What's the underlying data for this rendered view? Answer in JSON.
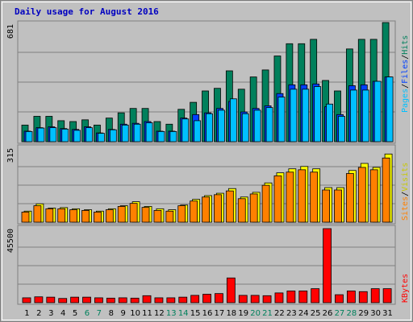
{
  "chart_data": [
    {
      "type": "bar",
      "title": "Daily usage for August 2016",
      "panel": "hits-files-pages",
      "y_max_label": "681",
      "ylim": [
        0,
        681
      ],
      "grid": true,
      "side_label_parts": [
        "Pages",
        "/",
        "Files",
        "/",
        "Hits"
      ],
      "categories": [
        "1",
        "2",
        "3",
        "4",
        "5",
        "6",
        "7",
        "8",
        "9",
        "10",
        "11",
        "12",
        "13",
        "14",
        "15",
        "16",
        "17",
        "18",
        "19",
        "20",
        "21",
        "22",
        "23",
        "24",
        "25",
        "26",
        "27",
        "28",
        "29",
        "30",
        "31"
      ],
      "weekend_days": [
        "6",
        "7",
        "13",
        "14",
        "20",
        "21",
        "27",
        "28"
      ],
      "series": [
        {
          "name": "Hits",
          "values": [
            95,
            145,
            145,
            120,
            115,
            125,
            95,
            135,
            165,
            190,
            190,
            115,
            100,
            185,
            225,
            290,
            305,
            405,
            300,
            370,
            410,
            490,
            560,
            560,
            585,
            350,
            290,
            530,
            585,
            585,
            681
          ]
        },
        {
          "name": "Files",
          "values": [
            60,
            80,
            85,
            75,
            70,
            85,
            50,
            70,
            100,
            105,
            115,
            60,
            60,
            135,
            155,
            165,
            190,
            230,
            170,
            190,
            205,
            275,
            325,
            325,
            330,
            200,
            155,
            320,
            325,
            345,
            370
          ]
        },
        {
          "name": "Pages",
          "values": [
            58,
            78,
            80,
            72,
            65,
            80,
            48,
            68,
            95,
            100,
            108,
            58,
            58,
            130,
            120,
            160,
            180,
            245,
            160,
            180,
            195,
            255,
            300,
            300,
            315,
            215,
            145,
            295,
            295,
            345,
            370
          ]
        }
      ],
      "colors": {
        "Hits": "#00805c",
        "Files": "#0040ff",
        "Pages": "#00c0ff"
      }
    },
    {
      "type": "bar",
      "panel": "visits-sites",
      "y_max_label": "315",
      "ylim": [
        0,
        315
      ],
      "grid": true,
      "side_label_parts": [
        "Sites",
        "/",
        "Visits"
      ],
      "categories": [
        "1",
        "2",
        "3",
        "4",
        "5",
        "6",
        "7",
        "8",
        "9",
        "10",
        "11",
        "12",
        "13",
        "14",
        "15",
        "16",
        "17",
        "18",
        "19",
        "20",
        "21",
        "22",
        "23",
        "24",
        "25",
        "26",
        "27",
        "28",
        "29",
        "30",
        "31"
      ],
      "series": [
        {
          "name": "Visits",
          "values": [
            47,
            78,
            60,
            62,
            57,
            53,
            47,
            57,
            70,
            87,
            67,
            57,
            53,
            73,
            97,
            113,
            123,
            143,
            107,
            127,
            167,
            210,
            227,
            237,
            227,
            147,
            147,
            220,
            250,
            233,
            290
          ]
        },
        {
          "name": "Sites",
          "values": [
            43,
            70,
            57,
            57,
            53,
            50,
            43,
            53,
            67,
            80,
            63,
            50,
            47,
            70,
            90,
            107,
            117,
            133,
            100,
            120,
            157,
            197,
            213,
            223,
            213,
            137,
            137,
            207,
            233,
            223,
            273
          ]
        }
      ],
      "colors": {
        "Visits": "#ffff00",
        "Sites": "#ff8000"
      }
    },
    {
      "type": "bar",
      "panel": "kbytes",
      "y_max_label": "45500",
      "ylim": [
        0,
        45500
      ],
      "grid": true,
      "side_label_parts": [
        "KBytes"
      ],
      "categories": [
        "1",
        "2",
        "3",
        "4",
        "5",
        "6",
        "7",
        "8",
        "9",
        "10",
        "11",
        "12",
        "13",
        "14",
        "15",
        "16",
        "17",
        "18",
        "19",
        "20",
        "21",
        "22",
        "23",
        "24",
        "25",
        "26",
        "27",
        "28",
        "29",
        "30",
        "31"
      ],
      "series": [
        {
          "name": "KBytes",
          "values": [
            3000,
            3600,
            3400,
            2600,
            3400,
            3400,
            3000,
            2800,
            3000,
            2800,
            4300,
            3000,
            3000,
            3400,
            4500,
            5200,
            5600,
            15200,
            4500,
            4500,
            4300,
            6000,
            7200,
            7200,
            8600,
            45500,
            4900,
            7200,
            6800,
            8600,
            8600
          ]
        }
      ],
      "colors": {
        "KBytes": "#ff0000"
      }
    }
  ]
}
